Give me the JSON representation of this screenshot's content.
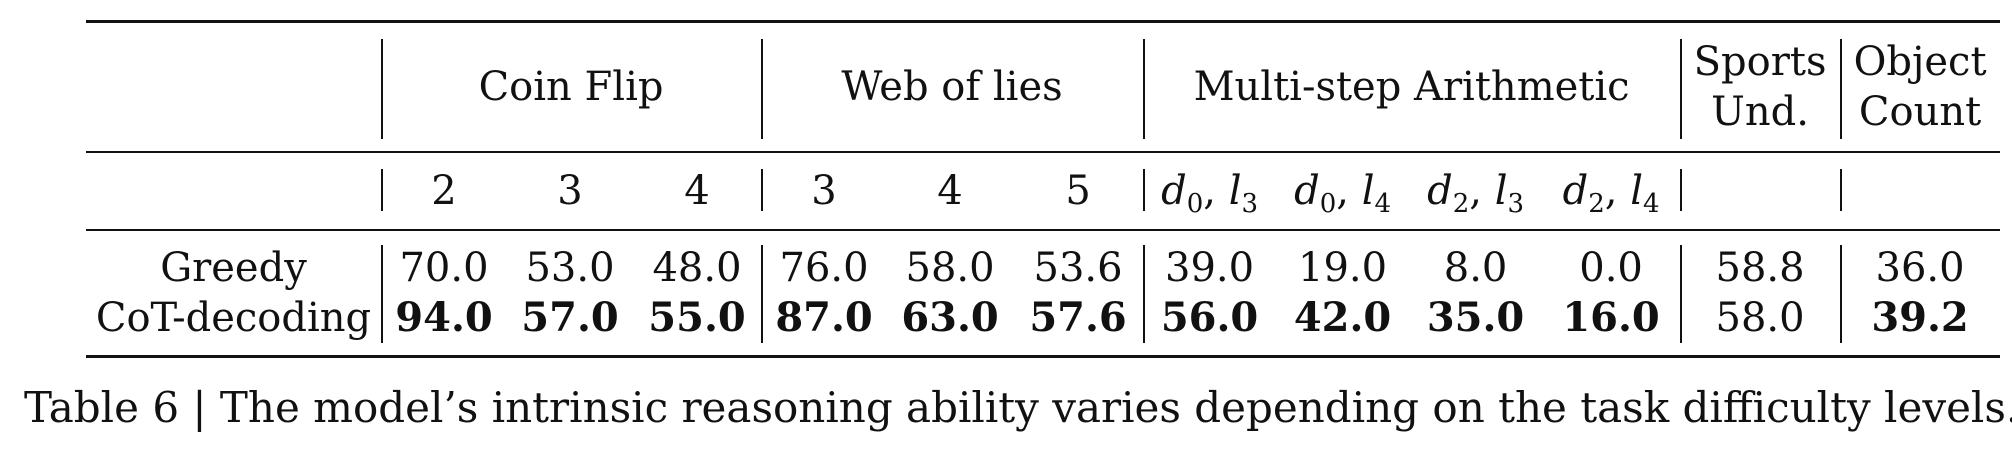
{
  "table": {
    "groups": [
      {
        "label": "Coin Flip",
        "span": 3
      },
      {
        "label": "Web of lies",
        "span": 3
      },
      {
        "label": "Multi-step Arithmetic",
        "span": 4
      },
      {
        "label_line1": "Sports",
        "label_line2": "Und.",
        "span": 1
      },
      {
        "label_line1": "Object",
        "label_line2": "Count",
        "span": 1
      }
    ],
    "subheaders": {
      "coin_flip": [
        "2",
        "3",
        "4"
      ],
      "web_of_lies": [
        "3",
        "4",
        "5"
      ],
      "arithmetic": [
        {
          "d": "d",
          "dsub": "0",
          "l": "l",
          "lsub": "3"
        },
        {
          "d": "d",
          "dsub": "0",
          "l": "l",
          "lsub": "4"
        },
        {
          "d": "d",
          "dsub": "2",
          "l": "l",
          "lsub": "3"
        },
        {
          "d": "d",
          "dsub": "2",
          "l": "l",
          "lsub": "4"
        }
      ]
    },
    "rows": [
      {
        "method": "Greedy",
        "values": [
          "70.0",
          "53.0",
          "48.0",
          "76.0",
          "58.0",
          "53.6",
          "39.0",
          "19.0",
          "8.0",
          "0.0",
          "58.8",
          "36.0"
        ],
        "bold": [
          false,
          false,
          false,
          false,
          false,
          false,
          false,
          false,
          false,
          false,
          false,
          false
        ]
      },
      {
        "method": "CoT-decoding",
        "values": [
          "94.0",
          "57.0",
          "55.0",
          "87.0",
          "63.0",
          "57.6",
          "56.0",
          "42.0",
          "35.0",
          "16.0",
          "58.0",
          "39.2"
        ],
        "bold": [
          true,
          true,
          true,
          true,
          true,
          true,
          true,
          true,
          true,
          true,
          false,
          true
        ]
      }
    ]
  },
  "caption": "Table 6 | The model’s intrinsic reasoning ability varies depending on the task difficulty levels."
}
